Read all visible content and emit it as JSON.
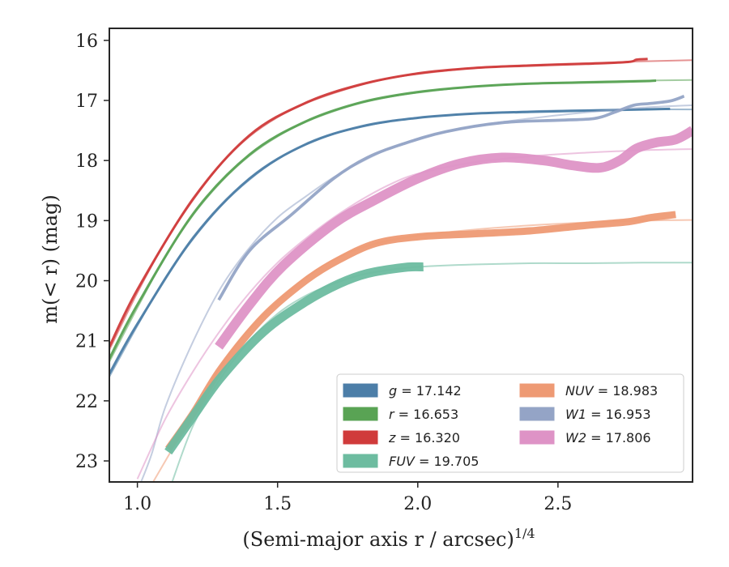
{
  "chart_data": {
    "type": "line",
    "xlabel": "(Semi-major axis r / arcsec)",
    "xlabel_sup": "1/4",
    "ylabel": "m(< r) (mag)",
    "xlim": [
      0.9,
      2.98
    ],
    "ylim": [
      23.35,
      15.8
    ],
    "y_inverted": true,
    "grid": false,
    "legend_placement": "lower-right",
    "x_ticks": [
      {
        "value": 1.0,
        "label": "1.0"
      },
      {
        "value": 1.5,
        "label": "1.5"
      },
      {
        "value": 2.0,
        "label": "2.0"
      },
      {
        "value": 2.5,
        "label": "2.5"
      }
    ],
    "y_ticks": [
      {
        "value": 16,
        "label": "16"
      },
      {
        "value": 17,
        "label": "17"
      },
      {
        "value": 18,
        "label": "18"
      },
      {
        "value": 19,
        "label": "19"
      },
      {
        "value": 20,
        "label": "20"
      },
      {
        "value": 21,
        "label": "21"
      },
      {
        "value": 22,
        "label": "22"
      },
      {
        "value": 23,
        "label": "23"
      }
    ],
    "legend": [
      {
        "band": "g",
        "value": "17.142",
        "color": "#4c7ea8"
      },
      {
        "band": "r",
        "value": "16.653",
        "color": "#59a354"
      },
      {
        "band": "z",
        "value": "16.320",
        "color": "#d03b3b"
      },
      {
        "band": "FUV",
        "value": "19.705",
        "color": "#6dbca0"
      },
      {
        "band": "NUV",
        "value": "18.983",
        "color": "#ee9a74"
      },
      {
        "band": "W1",
        "value": "16.953",
        "color": "#94a4c6"
      },
      {
        "band": "W2",
        "value": "17.806",
        "color": "#de93c6"
      }
    ],
    "series": [
      {
        "band": "z",
        "color": "#d03b3b",
        "model": {
          "asymptote": 16.32,
          "points": [
            [
              0.9,
              21.15
            ],
            [
              1.0,
              20.2
            ],
            [
              1.1,
              19.35
            ],
            [
              1.2,
              18.65
            ],
            [
              1.3,
              18.05
            ],
            [
              1.4,
              17.6
            ],
            [
              1.5,
              17.28
            ],
            [
              1.6,
              17.05
            ],
            [
              1.7,
              16.88
            ],
            [
              1.8,
              16.74
            ],
            [
              1.9,
              16.63
            ],
            [
              2.0,
              16.56
            ],
            [
              2.2,
              16.46
            ],
            [
              2.4,
              16.41
            ],
            [
              2.6,
              16.38
            ],
            [
              2.8,
              16.35
            ],
            [
              2.98,
              16.33
            ]
          ]
        },
        "data": {
          "width_mag": 0.04,
          "points": [
            [
              0.9,
              21.1
            ],
            [
              1.0,
              20.15
            ],
            [
              1.2,
              18.63
            ],
            [
              1.4,
              17.58
            ],
            [
              1.6,
              17.04
            ],
            [
              1.8,
              16.73
            ],
            [
              2.0,
              16.55
            ],
            [
              2.2,
              16.46
            ],
            [
              2.4,
              16.42
            ],
            [
              2.6,
              16.39
            ],
            [
              2.75,
              16.36
            ],
            [
              2.78,
              16.32
            ],
            [
              2.82,
              16.31
            ]
          ]
        }
      },
      {
        "band": "r",
        "color": "#59a354",
        "model": {
          "asymptote": 16.653,
          "points": [
            [
              0.9,
              21.35
            ],
            [
              1.0,
              20.45
            ],
            [
              1.1,
              19.6
            ],
            [
              1.2,
              18.9
            ],
            [
              1.3,
              18.35
            ],
            [
              1.4,
              17.92
            ],
            [
              1.5,
              17.6
            ],
            [
              1.6,
              17.36
            ],
            [
              1.7,
              17.18
            ],
            [
              1.8,
              17.04
            ],
            [
              1.9,
              16.94
            ],
            [
              2.0,
              16.87
            ],
            [
              2.2,
              16.77
            ],
            [
              2.4,
              16.72
            ],
            [
              2.6,
              16.69
            ],
            [
              2.8,
              16.67
            ],
            [
              2.98,
              16.66
            ]
          ]
        },
        "data": {
          "width_mag": 0.04,
          "points": [
            [
              0.9,
              21.3
            ],
            [
              1.0,
              20.4
            ],
            [
              1.2,
              18.88
            ],
            [
              1.4,
              17.9
            ],
            [
              1.6,
              17.35
            ],
            [
              1.8,
              17.03
            ],
            [
              2.0,
              16.86
            ],
            [
              2.2,
              16.77
            ],
            [
              2.4,
              16.72
            ],
            [
              2.6,
              16.7
            ],
            [
              2.8,
              16.68
            ],
            [
              2.85,
              16.67
            ]
          ]
        }
      },
      {
        "band": "g",
        "color": "#4c7ea8",
        "model": {
          "asymptote": 17.142,
          "points": [
            [
              0.9,
              21.6
            ],
            [
              1.0,
              20.75
            ],
            [
              1.1,
              19.95
            ],
            [
              1.2,
              19.3
            ],
            [
              1.3,
              18.75
            ],
            [
              1.4,
              18.32
            ],
            [
              1.5,
              17.98
            ],
            [
              1.6,
              17.74
            ],
            [
              1.7,
              17.56
            ],
            [
              1.8,
              17.44
            ],
            [
              1.9,
              17.35
            ],
            [
              2.0,
              17.29
            ],
            [
              2.2,
              17.22
            ],
            [
              2.4,
              17.18
            ],
            [
              2.6,
              17.16
            ],
            [
              2.8,
              17.15
            ],
            [
              2.98,
              17.15
            ]
          ]
        },
        "data": {
          "width_mag": 0.04,
          "points": [
            [
              0.9,
              21.55
            ],
            [
              1.0,
              20.72
            ],
            [
              1.2,
              19.28
            ],
            [
              1.4,
              18.3
            ],
            [
              1.6,
              17.73
            ],
            [
              1.8,
              17.43
            ],
            [
              2.0,
              17.29
            ],
            [
              2.2,
              17.22
            ],
            [
              2.4,
              17.19
            ],
            [
              2.6,
              17.17
            ],
            [
              2.8,
              17.15
            ],
            [
              2.9,
              17.14
            ]
          ]
        }
      },
      {
        "band": "W1",
        "color": "#94a4c6",
        "model": {
          "asymptote": 16.953,
          "points": [
            [
              1.0,
              23.5
            ],
            [
              1.05,
              22.9
            ],
            [
              1.1,
              22.1
            ],
            [
              1.2,
              21.0
            ],
            [
              1.3,
              20.1
            ],
            [
              1.4,
              19.45
            ],
            [
              1.5,
              18.95
            ],
            [
              1.6,
              18.6
            ],
            [
              1.7,
              18.28
            ],
            [
              1.8,
              18.02
            ],
            [
              1.9,
              17.8
            ],
            [
              2.0,
              17.64
            ],
            [
              2.2,
              17.43
            ],
            [
              2.4,
              17.3
            ],
            [
              2.6,
              17.2
            ],
            [
              2.8,
              17.12
            ],
            [
              2.98,
              17.08
            ]
          ]
        },
        "data": {
          "width_mag": 0.05,
          "points": [
            [
              1.29,
              20.32
            ],
            [
              1.4,
              19.5
            ],
            [
              1.55,
              18.9
            ],
            [
              1.7,
              18.3
            ],
            [
              1.82,
              17.95
            ],
            [
              1.95,
              17.72
            ],
            [
              2.1,
              17.52
            ],
            [
              2.3,
              17.37
            ],
            [
              2.5,
              17.33
            ],
            [
              2.63,
              17.3
            ],
            [
              2.7,
              17.2
            ],
            [
              2.77,
              17.08
            ],
            [
              2.83,
              17.05
            ],
            [
              2.9,
              17.01
            ],
            [
              2.95,
              16.93
            ]
          ]
        }
      },
      {
        "band": "W2",
        "color": "#de93c6",
        "model": {
          "asymptote": 17.806,
          "points": [
            [
              1.0,
              23.3
            ],
            [
              1.1,
              22.3
            ],
            [
              1.2,
              21.5
            ],
            [
              1.3,
              20.8
            ],
            [
              1.4,
              20.2
            ],
            [
              1.5,
              19.7
            ],
            [
              1.6,
              19.3
            ],
            [
              1.7,
              18.95
            ],
            [
              1.8,
              18.65
            ],
            [
              1.9,
              18.4
            ],
            [
              2.0,
              18.22
            ],
            [
              2.2,
              18.03
            ],
            [
              2.4,
              17.93
            ],
            [
              2.6,
              17.87
            ],
            [
              2.8,
              17.83
            ],
            [
              2.98,
              17.81
            ]
          ]
        },
        "data": {
          "width_mag": 0.16,
          "points": [
            [
              1.29,
              21.1
            ],
            [
              1.4,
              20.4
            ],
            [
              1.52,
              19.75
            ],
            [
              1.7,
              19.05
            ],
            [
              1.85,
              18.65
            ],
            [
              2.0,
              18.3
            ],
            [
              2.15,
              18.05
            ],
            [
              2.3,
              17.95
            ],
            [
              2.45,
              18.0
            ],
            [
              2.55,
              18.08
            ],
            [
              2.65,
              18.12
            ],
            [
              2.72,
              18.0
            ],
            [
              2.78,
              17.8
            ],
            [
              2.85,
              17.7
            ],
            [
              2.92,
              17.65
            ],
            [
              2.98,
              17.5
            ]
          ]
        }
      },
      {
        "band": "NUV",
        "color": "#ee9a74",
        "model": {
          "asymptote": 18.983,
          "points": [
            [
              1.05,
              23.4
            ],
            [
              1.1,
              23.0
            ],
            [
              1.2,
              22.2
            ],
            [
              1.3,
              21.4
            ],
            [
              1.4,
              20.8
            ],
            [
              1.5,
              20.35
            ],
            [
              1.6,
              19.95
            ],
            [
              1.7,
              19.65
            ],
            [
              1.8,
              19.45
            ],
            [
              1.9,
              19.33
            ],
            [
              2.0,
              19.25
            ],
            [
              2.2,
              19.15
            ],
            [
              2.4,
              19.08
            ],
            [
              2.6,
              19.03
            ],
            [
              2.8,
              19.0
            ],
            [
              2.98,
              18.99
            ]
          ]
        },
        "data": {
          "width_mag": 0.12,
          "points": [
            [
              1.11,
              22.8
            ],
            [
              1.2,
              22.2
            ],
            [
              1.3,
              21.45
            ],
            [
              1.45,
              20.6
            ],
            [
              1.6,
              20.0
            ],
            [
              1.72,
              19.65
            ],
            [
              1.85,
              19.38
            ],
            [
              2.0,
              19.27
            ],
            [
              2.2,
              19.22
            ],
            [
              2.4,
              19.17
            ],
            [
              2.6,
              19.08
            ],
            [
              2.75,
              19.02
            ],
            [
              2.83,
              18.95
            ],
            [
              2.92,
              18.9
            ]
          ]
        }
      },
      {
        "band": "FUV",
        "color": "#6dbca0",
        "model": {
          "asymptote": 19.705,
          "points": [
            [
              1.12,
              23.4
            ],
            [
              1.2,
              22.4
            ],
            [
              1.3,
              21.6
            ],
            [
              1.4,
              21.0
            ],
            [
              1.5,
              20.55
            ],
            [
              1.6,
              20.25
            ],
            [
              1.7,
              20.05
            ],
            [
              1.8,
              19.9
            ],
            [
              1.9,
              19.82
            ],
            [
              2.0,
              19.77
            ],
            [
              2.2,
              19.73
            ],
            [
              2.4,
              19.71
            ],
            [
              2.6,
              19.71
            ],
            [
              2.8,
              19.7
            ],
            [
              2.98,
              19.7
            ]
          ]
        },
        "data": {
          "width_mag": 0.15,
          "points": [
            [
              1.11,
              22.85
            ],
            [
              1.2,
              22.25
            ],
            [
              1.3,
              21.6
            ],
            [
              1.45,
              20.85
            ],
            [
              1.6,
              20.35
            ],
            [
              1.72,
              20.05
            ],
            [
              1.82,
              19.88
            ],
            [
              1.95,
              19.78
            ],
            [
              2.02,
              19.77
            ]
          ]
        }
      }
    ]
  }
}
